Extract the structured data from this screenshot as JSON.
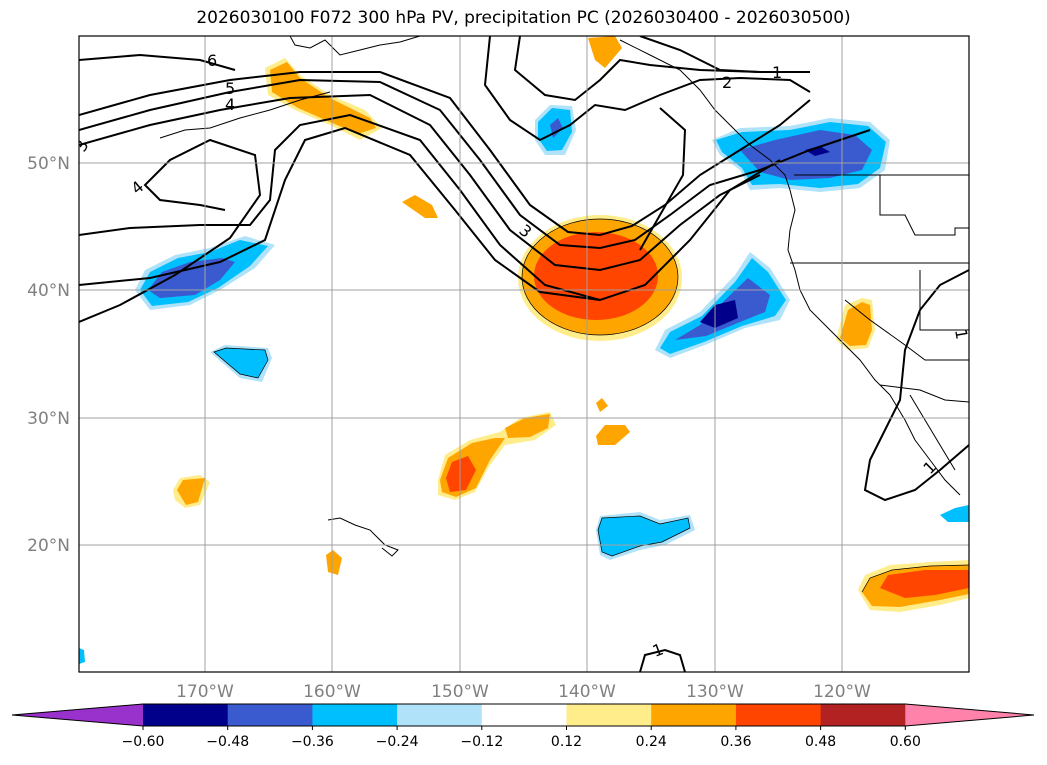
{
  "title": "2026030100 F072 300 hPa PV, precipitation PC (2026030400 - 2026030500)",
  "lon_labels": [
    "170°W",
    "160°W",
    "150°W",
    "140°W",
    "130°W",
    "120°W"
  ],
  "lat_labels": [
    "50°N",
    "40°N",
    "30°N",
    "20°N"
  ],
  "contour_labels": [
    "6",
    "5",
    "4",
    "3",
    "4",
    "3",
    "2",
    "1",
    "1",
    "1",
    "1"
  ],
  "colorbar": {
    "ticks": [
      "−0.60",
      "−0.48",
      "−0.36",
      "−0.24",
      "−0.12",
      "0.12",
      "0.24",
      "0.36",
      "0.48",
      "0.60"
    ],
    "colors": [
      "#9932cc",
      "#00008b",
      "#3a5bd0",
      "#00bfff",
      "#b0e2fa",
      "#ffffff",
      "#ffec8b",
      "#ffa500",
      "#ff4500",
      "#b22222",
      "#ff82ab"
    ]
  }
}
